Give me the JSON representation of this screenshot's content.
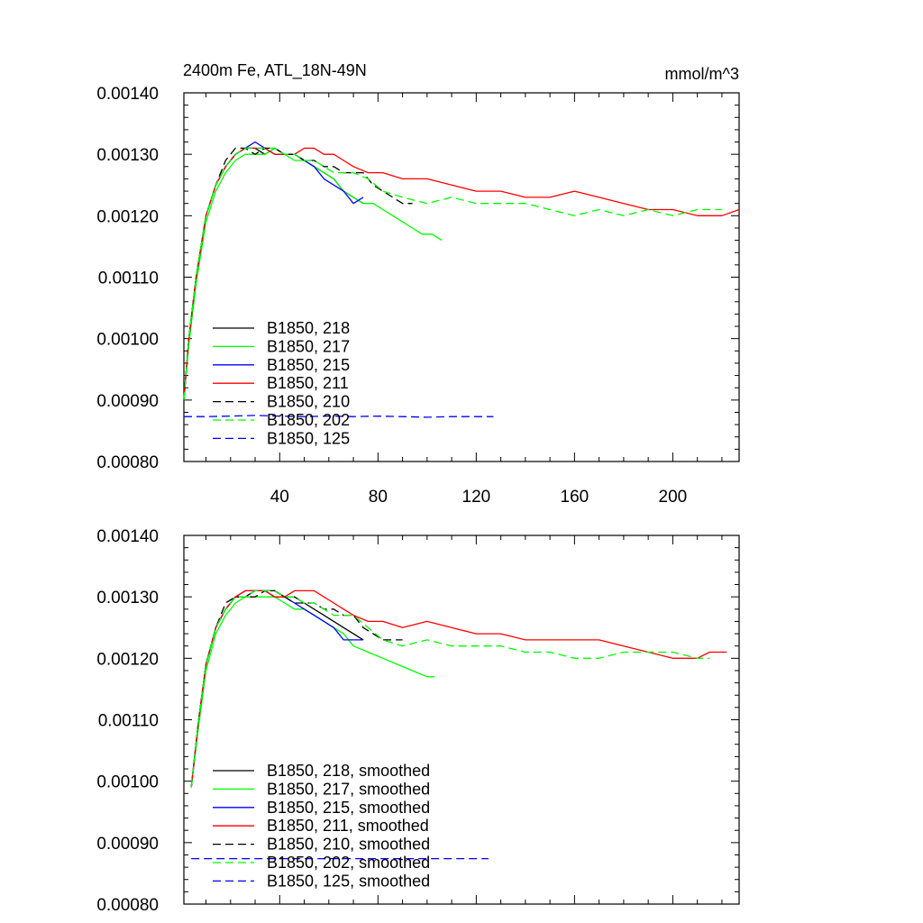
{
  "header": {
    "title": "2400m Fe, ATL_18N-49N",
    "units": "mmol/m^3"
  },
  "chart_data": [
    {
      "type": "line",
      "panel": "top",
      "xlim": [
        1,
        227
      ],
      "ylim": [
        0.0008,
        0.0014
      ],
      "xticks": [
        40,
        80,
        120,
        160,
        200
      ],
      "xtick_labels": [
        "40",
        "80",
        "120",
        "160",
        "200"
      ],
      "yticks": [
        0.0008,
        0.0009,
        0.001,
        0.0011,
        0.0012,
        0.0013,
        0.0014
      ],
      "ytick_labels": [
        "0.00080",
        "0.00090",
        "0.00100",
        "0.00110",
        "0.00120",
        "0.00130",
        "0.00140"
      ],
      "legend_position": "lower-left",
      "series": [
        {
          "name": "B1850, 218",
          "color": "#000000",
          "dash": "solid",
          "x": [
            1,
            3,
            6,
            10,
            14,
            18,
            22,
            26,
            30,
            34,
            38,
            42,
            46,
            50,
            54,
            58,
            62,
            66,
            70,
            74
          ],
          "y": [
            0.0009,
            0.001,
            0.0011,
            0.0012,
            0.00125,
            0.00128,
            0.0013,
            0.00131,
            0.00131,
            0.0013,
            0.00131,
            0.0013,
            0.0013,
            0.00129,
            0.00128,
            0.00127,
            0.00126,
            0.00124,
            0.00123,
            0.00122
          ]
        },
        {
          "name": "B1850, 217",
          "color": "#00ff00",
          "dash": "solid",
          "x": [
            1,
            3,
            6,
            10,
            14,
            18,
            22,
            26,
            30,
            34,
            38,
            42,
            46,
            50,
            54,
            58,
            62,
            66,
            70,
            74,
            78,
            82,
            86,
            90,
            94,
            98,
            102,
            106
          ],
          "y": [
            0.0009,
            0.00099,
            0.00109,
            0.00119,
            0.00124,
            0.00127,
            0.00129,
            0.0013,
            0.0013,
            0.0013,
            0.00131,
            0.0013,
            0.00129,
            0.00129,
            0.00128,
            0.00127,
            0.00126,
            0.00124,
            0.00123,
            0.00122,
            0.00122,
            0.00121,
            0.0012,
            0.00119,
            0.00118,
            0.00117,
            0.00117,
            0.00116
          ]
        },
        {
          "name": "B1850, 215",
          "color": "#0000ff",
          "dash": "solid",
          "x": [
            1,
            3,
            6,
            10,
            14,
            18,
            22,
            26,
            30,
            34,
            38,
            42,
            46,
            50,
            54,
            58,
            62,
            66,
            70,
            74
          ],
          "y": [
            0.0009,
            0.001,
            0.0011,
            0.0012,
            0.00125,
            0.00128,
            0.0013,
            0.00131,
            0.00132,
            0.00131,
            0.0013,
            0.0013,
            0.0013,
            0.00129,
            0.00128,
            0.00126,
            0.00125,
            0.00124,
            0.00122,
            0.00123
          ]
        },
        {
          "name": "B1850, 211",
          "color": "#ff0000",
          "dash": "solid",
          "x": [
            1,
            3,
            6,
            10,
            14,
            18,
            22,
            26,
            30,
            34,
            38,
            42,
            46,
            50,
            54,
            58,
            62,
            66,
            70,
            76,
            82,
            90,
            100,
            110,
            120,
            130,
            140,
            150,
            160,
            170,
            180,
            190,
            200,
            210,
            220,
            227
          ],
          "y": [
            0.0009,
            0.001,
            0.0011,
            0.0012,
            0.00125,
            0.00128,
            0.0013,
            0.00131,
            0.00131,
            0.00131,
            0.0013,
            0.0013,
            0.0013,
            0.00131,
            0.00131,
            0.0013,
            0.0013,
            0.00129,
            0.00128,
            0.00127,
            0.00127,
            0.00126,
            0.00126,
            0.00125,
            0.00124,
            0.00124,
            0.00123,
            0.00123,
            0.00124,
            0.00123,
            0.00122,
            0.00121,
            0.00121,
            0.0012,
            0.0012,
            0.00121
          ]
        },
        {
          "name": "B1850, 210",
          "color": "#000000",
          "dash": "dashed",
          "x": [
            1,
            3,
            6,
            10,
            14,
            18,
            22,
            26,
            30,
            34,
            38,
            42,
            46,
            50,
            54,
            58,
            62,
            66,
            70,
            74,
            78,
            82,
            86,
            90,
            94
          ],
          "y": [
            0.0009,
            0.001,
            0.0011,
            0.0012,
            0.00125,
            0.00129,
            0.00131,
            0.00131,
            0.0013,
            0.00131,
            0.00131,
            0.0013,
            0.0013,
            0.00129,
            0.00129,
            0.00128,
            0.00128,
            0.00127,
            0.00127,
            0.00127,
            0.00125,
            0.00124,
            0.00123,
            0.00122,
            0.00122
          ]
        },
        {
          "name": "B1850, 202",
          "color": "#00ff00",
          "dash": "dashed",
          "x": [
            1,
            3,
            6,
            10,
            14,
            18,
            22,
            26,
            30,
            34,
            38,
            42,
            46,
            50,
            54,
            58,
            62,
            66,
            70,
            76,
            82,
            90,
            100,
            110,
            120,
            130,
            140,
            150,
            160,
            170,
            180,
            190,
            200,
            210,
            220
          ],
          "y": [
            0.0009,
            0.001,
            0.0011,
            0.0012,
            0.00125,
            0.00128,
            0.0013,
            0.00131,
            0.00131,
            0.00131,
            0.00131,
            0.0013,
            0.0013,
            0.00129,
            0.00129,
            0.00128,
            0.00127,
            0.00127,
            0.00127,
            0.00126,
            0.00124,
            0.00123,
            0.00122,
            0.00123,
            0.00122,
            0.00122,
            0.00122,
            0.00121,
            0.0012,
            0.00121,
            0.0012,
            0.00121,
            0.0012,
            0.00121,
            0.00121
          ]
        },
        {
          "name": "B1850, 125",
          "color": "#0000ff",
          "dash": "dashed",
          "x": [
            1,
            10,
            20,
            30,
            40,
            50,
            60,
            70,
            80,
            90,
            100,
            110,
            120,
            127
          ],
          "y": [
            0.000873,
            0.000873,
            0.000874,
            0.000875,
            0.000874,
            0.000873,
            0.000874,
            0.000873,
            0.000874,
            0.000873,
            0.000872,
            0.000873,
            0.000873,
            0.000873
          ]
        }
      ]
    },
    {
      "type": "line",
      "panel": "bottom",
      "xlim": [
        1,
        227
      ],
      "ylim": [
        0.0008,
        0.0014
      ],
      "xticks": [
        40,
        80,
        120,
        160,
        200
      ],
      "xtick_labels": [],
      "yticks": [
        0.0008,
        0.0009,
        0.001,
        0.0011,
        0.0012,
        0.0013,
        0.0014
      ],
      "ytick_labels": [
        "0.00080",
        "0.00090",
        "0.00100",
        "0.00110",
        "0.00120",
        "0.00130",
        "0.00140"
      ],
      "legend_position": "lower-left",
      "series": [
        {
          "name": "B1850, 218, smoothed",
          "color": "#000000",
          "dash": "solid",
          "x": [
            4,
            7,
            10,
            14,
            18,
            22,
            26,
            30,
            34,
            38,
            42,
            46,
            50,
            54,
            58,
            62,
            66,
            70,
            74
          ],
          "y": [
            0.00099,
            0.0011,
            0.00119,
            0.00125,
            0.00128,
            0.0013,
            0.0013,
            0.00131,
            0.00131,
            0.00131,
            0.0013,
            0.0013,
            0.00129,
            0.00128,
            0.00127,
            0.00126,
            0.00125,
            0.00124,
            0.00123
          ]
        },
        {
          "name": "B1850, 217, smoothed",
          "color": "#00ff00",
          "dash": "solid",
          "x": [
            4,
            7,
            10,
            14,
            18,
            22,
            26,
            30,
            34,
            38,
            42,
            46,
            50,
            54,
            58,
            62,
            66,
            70,
            76,
            82,
            88,
            94,
            100,
            103
          ],
          "y": [
            0.00099,
            0.00109,
            0.00118,
            0.00124,
            0.00127,
            0.00129,
            0.0013,
            0.0013,
            0.0013,
            0.0013,
            0.00129,
            0.00128,
            0.00128,
            0.00127,
            0.00126,
            0.00125,
            0.00124,
            0.00122,
            0.00121,
            0.0012,
            0.00119,
            0.00118,
            0.00117,
            0.00117
          ]
        },
        {
          "name": "B1850, 215, smoothed",
          "color": "#0000ff",
          "dash": "solid",
          "x": [
            4,
            7,
            10,
            14,
            18,
            22,
            26,
            30,
            34,
            38,
            42,
            46,
            50,
            54,
            58,
            62,
            66,
            70,
            74
          ],
          "y": [
            0.00099,
            0.0011,
            0.00119,
            0.00125,
            0.00128,
            0.0013,
            0.00131,
            0.00131,
            0.00131,
            0.0013,
            0.0013,
            0.00129,
            0.00128,
            0.00127,
            0.00126,
            0.00125,
            0.00123,
            0.00123,
            0.00123
          ]
        },
        {
          "name": "B1850, 211, smoothed",
          "color": "#ff0000",
          "dash": "solid",
          "x": [
            4,
            7,
            10,
            14,
            18,
            22,
            26,
            30,
            34,
            38,
            42,
            46,
            50,
            54,
            58,
            62,
            66,
            70,
            76,
            82,
            90,
            100,
            110,
            120,
            130,
            140,
            150,
            160,
            170,
            180,
            190,
            200,
            210,
            215,
            222
          ],
          "y": [
            0.00099,
            0.0011,
            0.00119,
            0.00125,
            0.00128,
            0.0013,
            0.00131,
            0.00131,
            0.00131,
            0.0013,
            0.0013,
            0.00131,
            0.00131,
            0.00131,
            0.0013,
            0.00129,
            0.00128,
            0.00127,
            0.00126,
            0.00126,
            0.00125,
            0.00126,
            0.00125,
            0.00124,
            0.00124,
            0.00123,
            0.00123,
            0.00123,
            0.00123,
            0.00122,
            0.00121,
            0.0012,
            0.0012,
            0.00121,
            0.00121
          ]
        },
        {
          "name": "B1850, 210, smoothed",
          "color": "#000000",
          "dash": "dashed",
          "x": [
            4,
            7,
            10,
            14,
            18,
            22,
            26,
            30,
            34,
            38,
            42,
            46,
            50,
            54,
            58,
            62,
            66,
            70,
            74,
            78,
            82,
            86,
            90
          ],
          "y": [
            0.00099,
            0.0011,
            0.00119,
            0.00125,
            0.00129,
            0.0013,
            0.0013,
            0.0013,
            0.00131,
            0.00131,
            0.0013,
            0.00129,
            0.00129,
            0.00129,
            0.00128,
            0.00128,
            0.00127,
            0.00127,
            0.00125,
            0.00124,
            0.00123,
            0.00123,
            0.00123
          ]
        },
        {
          "name": "B1850, 202, smoothed",
          "color": "#00ff00",
          "dash": "dashed",
          "x": [
            4,
            7,
            10,
            14,
            18,
            22,
            26,
            30,
            34,
            38,
            42,
            46,
            50,
            54,
            58,
            62,
            66,
            70,
            76,
            82,
            90,
            100,
            110,
            120,
            130,
            140,
            150,
            160,
            170,
            180,
            190,
            200,
            210,
            215
          ],
          "y": [
            0.00099,
            0.0011,
            0.00119,
            0.00125,
            0.00128,
            0.0013,
            0.0013,
            0.00131,
            0.00131,
            0.00131,
            0.0013,
            0.0013,
            0.00129,
            0.00129,
            0.00128,
            0.00127,
            0.00127,
            0.00127,
            0.00125,
            0.00123,
            0.00122,
            0.00123,
            0.00122,
            0.00122,
            0.00122,
            0.00121,
            0.00121,
            0.0012,
            0.0012,
            0.00121,
            0.00121,
            0.00121,
            0.0012,
            0.0012
          ]
        },
        {
          "name": "B1850, 125, smoothed",
          "color": "#0000ff",
          "dash": "dashed",
          "x": [
            4,
            20,
            40,
            60,
            80,
            100,
            120,
            125
          ],
          "y": [
            0.000874,
            0.000874,
            0.000874,
            0.000874,
            0.000874,
            0.000874,
            0.000874,
            0.000874
          ]
        }
      ]
    }
  ]
}
